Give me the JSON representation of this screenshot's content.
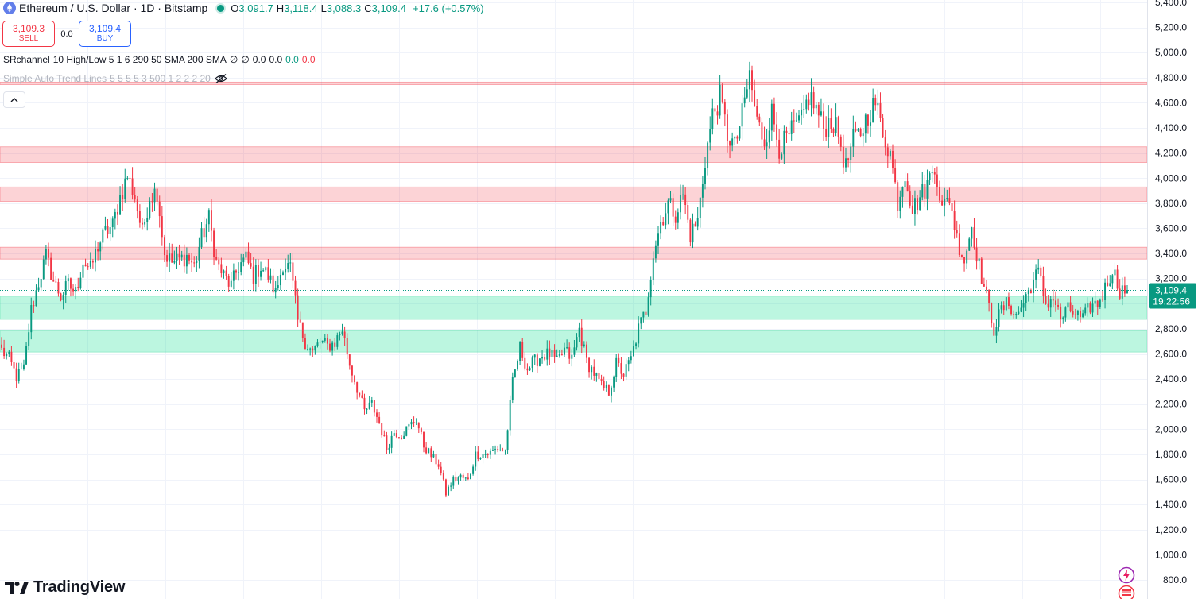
{
  "header": {
    "title": "Ethereum / U.S. Dollar · 1D · Bitstamp",
    "ohlc": [
      {
        "label": "O",
        "value": "3,091.7"
      },
      {
        "label": "H",
        "value": "3,118.4"
      },
      {
        "label": "L",
        "value": "3,088.3"
      },
      {
        "label": "C",
        "value": "3,109.4"
      }
    ],
    "change": "+17.6 (+0.57%)"
  },
  "trade": {
    "sell_price": "3,109.3",
    "sell_label": "SELL",
    "spread": "0.0",
    "buy_price": "3,109.4",
    "buy_label": "BUY"
  },
  "indicators": {
    "sr_name": "SRchannel",
    "sr_params": "10 High/Low 5 1 6 290 50 SMA 200 SMA",
    "sr_values": [
      "∅",
      "∅",
      "0.0",
      "0.0"
    ],
    "sr_green": "0.0",
    "sr_red": "0.0",
    "trend_name": "Simple Auto Trend Lines",
    "trend_params": "5 5 5 5 3 500 1 2 2 2 20"
  },
  "branding": {
    "logo_text": "TradingView"
  },
  "colors": {
    "up": "#089981",
    "down": "#f23645",
    "resistance_zone": "rgba(242,54,69,0.22)",
    "support_zone": "rgba(8,220,140,0.27)",
    "grid": "#f0f3fa",
    "last_price_bg": "#089981"
  },
  "chart_data": {
    "type": "candlestick",
    "symbol": "ETHUSD",
    "interval": "1D",
    "exchange": "Bitstamp",
    "y_axis": {
      "ylim": [
        770,
        5450
      ],
      "ticks": [
        800,
        1000,
        1200,
        1400,
        1600,
        1800,
        2000,
        2200,
        2400,
        2600,
        2800,
        3000,
        3200,
        3400,
        3600,
        3800,
        4000,
        4200,
        4400,
        4600,
        4800,
        5000,
        5200,
        5400
      ],
      "tick_labels": [
        "800.0",
        "1,000.0",
        "1,200.0",
        "1,400.0",
        "1,600.0",
        "1,800.0",
        "2,000.0",
        "2,200.0",
        "2,400.0",
        "2,600.0",
        "2,800.0",
        "3,000.0",
        "3,200.0",
        "3,400.0",
        "3,600.0",
        "3,800.0",
        "4,000.0",
        "4,200.0",
        "4,400.0",
        "4,600.0",
        "4,800.0",
        "5,000.0",
        "5,200.0",
        "5,400.0"
      ]
    },
    "last_price": 3109.4,
    "last_price_label": "3,109.4",
    "countdown_label": "19:22:56",
    "zones": [
      {
        "type": "resistance",
        "low": 4745,
        "high": 4765
      },
      {
        "type": "resistance",
        "low": 4125,
        "high": 4250
      },
      {
        "type": "resistance",
        "low": 3815,
        "high": 3930
      },
      {
        "type": "resistance",
        "low": 3355,
        "high": 3450
      },
      {
        "type": "support",
        "low": 2875,
        "high": 3060
      },
      {
        "type": "support",
        "low": 2615,
        "high": 2785
      }
    ],
    "price_path": [
      2630,
      2560,
      2420,
      2480,
      2950,
      3170,
      3380,
      3180,
      3060,
      3150,
      3090,
      3340,
      3270,
      3460,
      3570,
      3620,
      3850,
      4020,
      3850,
      3560,
      3860,
      3900,
      3400,
      3330,
      3350,
      3380,
      3300,
      3530,
      3680,
      3330,
      3220,
      3140,
      3300,
      3360,
      3220,
      3300,
      3220,
      3080,
      3320,
      3280,
      2860,
      2700,
      2610,
      2700,
      2660,
      2690,
      2800,
      2520,
      2330,
      2140,
      2200,
      2050,
      1850,
      1980,
      1960,
      2020,
      2080,
      1870,
      1790,
      1720,
      1490,
      1600,
      1620,
      1590,
      1800,
      1800,
      1810,
      1850,
      1830,
      2370,
      2650,
      2480,
      2540,
      2590,
      2600,
      2530,
      2630,
      2560,
      2800,
      2540,
      2450,
      2340,
      2300,
      2520,
      2440,
      2560,
      2800,
      2950,
      3400,
      3650,
      3800,
      3720,
      3870,
      3550,
      3660,
      4150,
      4500,
      4640,
      4350,
      4250,
      4500,
      4820,
      4450,
      4300,
      4520,
      4250,
      4300,
      4400,
      4450,
      4660,
      4550,
      4400,
      4470,
      4350,
      4080,
      4300,
      4360,
      4510,
      4600,
      4370,
      4200,
      3810,
      4050,
      3750,
      3850,
      3950,
      4120,
      3750,
      3850,
      3520,
      3350,
      3620,
      3300,
      3050,
      2800,
      2950,
      3010,
      2900,
      3010,
      3150,
      3250,
      3000,
      3050,
      2880,
      2950,
      2920,
      2870,
      2980,
      3000,
      3120,
      3280,
      3110,
      3109
    ]
  }
}
